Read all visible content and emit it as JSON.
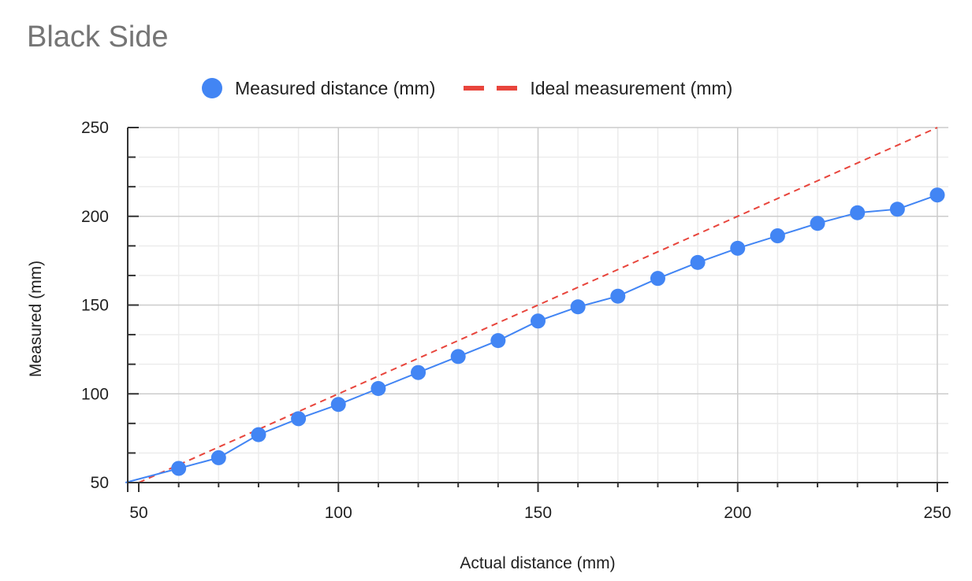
{
  "chart_data": {
    "type": "line",
    "title": "Black Side",
    "xlabel": "Actual distance (mm)",
    "ylabel": "Measured (mm)",
    "xlim": [
      50,
      250
    ],
    "ylim": [
      50,
      250
    ],
    "x_ticks": [
      50,
      100,
      150,
      200,
      250
    ],
    "y_ticks": [
      50,
      100,
      150,
      200,
      250
    ],
    "grid": true,
    "legend_position": "top",
    "series": [
      {
        "name": "Measured distance (mm)",
        "style": "line-with-points",
        "color": "#4285f4",
        "x": [
          60,
          70,
          80,
          90,
          100,
          110,
          120,
          130,
          140,
          150,
          160,
          170,
          180,
          190,
          200,
          210,
          220,
          230,
          240,
          250
        ],
        "values": [
          58,
          64,
          77,
          86,
          94,
          103,
          112,
          121,
          130,
          141,
          149,
          155,
          165,
          174,
          182,
          189,
          196,
          202,
          204,
          212
        ]
      },
      {
        "name": "Ideal measurement (mm)",
        "style": "dashed-line",
        "color": "#e8453c",
        "x": [
          50,
          250
        ],
        "values": [
          50,
          250
        ]
      }
    ]
  }
}
